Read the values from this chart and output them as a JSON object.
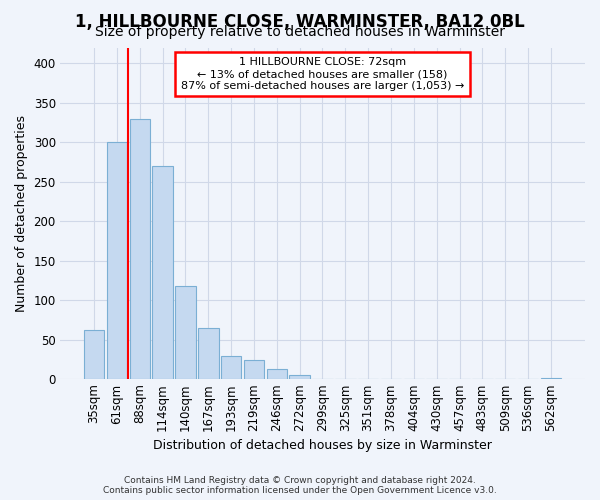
{
  "title": "1, HILLBOURNE CLOSE, WARMINSTER, BA12 0BL",
  "subtitle": "Size of property relative to detached houses in Warminster",
  "xlabel": "Distribution of detached houses by size in Warminster",
  "ylabel": "Number of detached properties",
  "categories": [
    "35sqm",
    "61sqm",
    "88sqm",
    "114sqm",
    "140sqm",
    "167sqm",
    "193sqm",
    "219sqm",
    "246sqm",
    "272sqm",
    "299sqm",
    "325sqm",
    "351sqm",
    "378sqm",
    "404sqm",
    "430sqm",
    "457sqm",
    "483sqm",
    "509sqm",
    "536sqm",
    "562sqm"
  ],
  "values": [
    62,
    300,
    330,
    270,
    118,
    65,
    30,
    25,
    13,
    5,
    1,
    1,
    0,
    0,
    0,
    0,
    0,
    0,
    0,
    0,
    2
  ],
  "bar_color": "#c5d9f0",
  "bar_edge_color": "#7bafd4",
  "red_line_x": 1.5,
  "annotation_line1": "1 HILLBOURNE CLOSE: 72sqm",
  "annotation_line2": "← 13% of detached houses are smaller (158)",
  "annotation_line3": "87% of semi-detached houses are larger (1,053) →",
  "ylim_max": 420,
  "yticks": [
    0,
    50,
    100,
    150,
    200,
    250,
    300,
    350,
    400
  ],
  "footer1": "Contains HM Land Registry data © Crown copyright and database right 2024.",
  "footer2": "Contains public sector information licensed under the Open Government Licence v3.0.",
  "bg_color": "#f0f4fb",
  "grid_color": "#d0d8e8",
  "title_fontsize": 12,
  "subtitle_fontsize": 10,
  "axis_fontsize": 9,
  "tick_fontsize": 8.5,
  "footer_fontsize": 6.5
}
